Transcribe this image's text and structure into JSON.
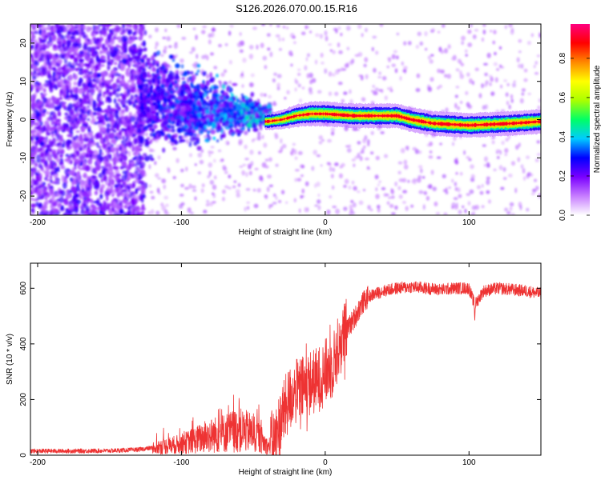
{
  "title": "S126.2026.070.00.15.R16",
  "chart_data": [
    {
      "type": "heatmap",
      "xlabel": "Height of straight line (km)",
      "ylabel": "Frequency (Hz)",
      "xlim": [
        -205,
        150
      ],
      "ylim": [
        -25,
        25
      ],
      "xticks": [
        -200,
        -100,
        0,
        100
      ],
      "yticks": [
        -20,
        -10,
        0,
        10,
        20
      ],
      "ridge": [
        {
          "x": -40,
          "y": -0.5
        },
        {
          "x": -30,
          "y": 0
        },
        {
          "x": -20,
          "y": 1
        },
        {
          "x": -10,
          "y": 1.5
        },
        {
          "x": 0,
          "y": 1.5
        },
        {
          "x": 20,
          "y": 1
        },
        {
          "x": 50,
          "y": 1
        },
        {
          "x": 60,
          "y": 0
        },
        {
          "x": 75,
          "y": -1
        },
        {
          "x": 100,
          "y": -1.5
        },
        {
          "x": 130,
          "y": -1
        },
        {
          "x": 150,
          "y": -0.5
        }
      ],
      "colorbar": {
        "label": "Normalized spectral amplitude",
        "range": [
          0,
          1
        ],
        "ticks": [
          0.0,
          0.2,
          0.4,
          0.6,
          0.8
        ],
        "tick_labels": [
          "0.0",
          "0.2",
          "0.4",
          "0.6",
          "0.8"
        ],
        "colors": [
          "#ffffff",
          "#c77dff",
          "#7a00ff",
          "#0000ff",
          "#00ccff",
          "#00ff66",
          "#aaff00",
          "#ffff00",
          "#ff8800",
          "#ff0000",
          "#ff0080"
        ]
      }
    },
    {
      "type": "line",
      "xlabel": "Height of straight line (km)",
      "ylabel": "SNR (10 * v/v)",
      "xlim": [
        -205,
        150
      ],
      "ylim": [
        0,
        690
      ],
      "xticks": [
        -200,
        -100,
        0,
        100
      ],
      "yticks": [
        0,
        200,
        400,
        600
      ],
      "color": "#ee3333",
      "series": [
        {
          "name": "SNR",
          "x": [
            -205,
            -180,
            -150,
            -130,
            -115,
            -100,
            -90,
            -80,
            -70,
            -60,
            -50,
            -45,
            -40,
            -35,
            -30,
            -25,
            -20,
            -15,
            -10,
            -5,
            0,
            5,
            10,
            15,
            20,
            25,
            30,
            35,
            40,
            50,
            60,
            70,
            80,
            90,
            100,
            104,
            110,
            120,
            130,
            140,
            150
          ],
          "y": [
            15,
            15,
            16,
            20,
            30,
            40,
            55,
            70,
            80,
            90,
            80,
            60,
            30,
            50,
            140,
            200,
            230,
            240,
            260,
            270,
            300,
            320,
            400,
            450,
            490,
            540,
            570,
            580,
            590,
            600,
            605,
            600,
            595,
            600,
            600,
            540,
            590,
            600,
            595,
            590,
            580
          ]
        }
      ]
    }
  ]
}
